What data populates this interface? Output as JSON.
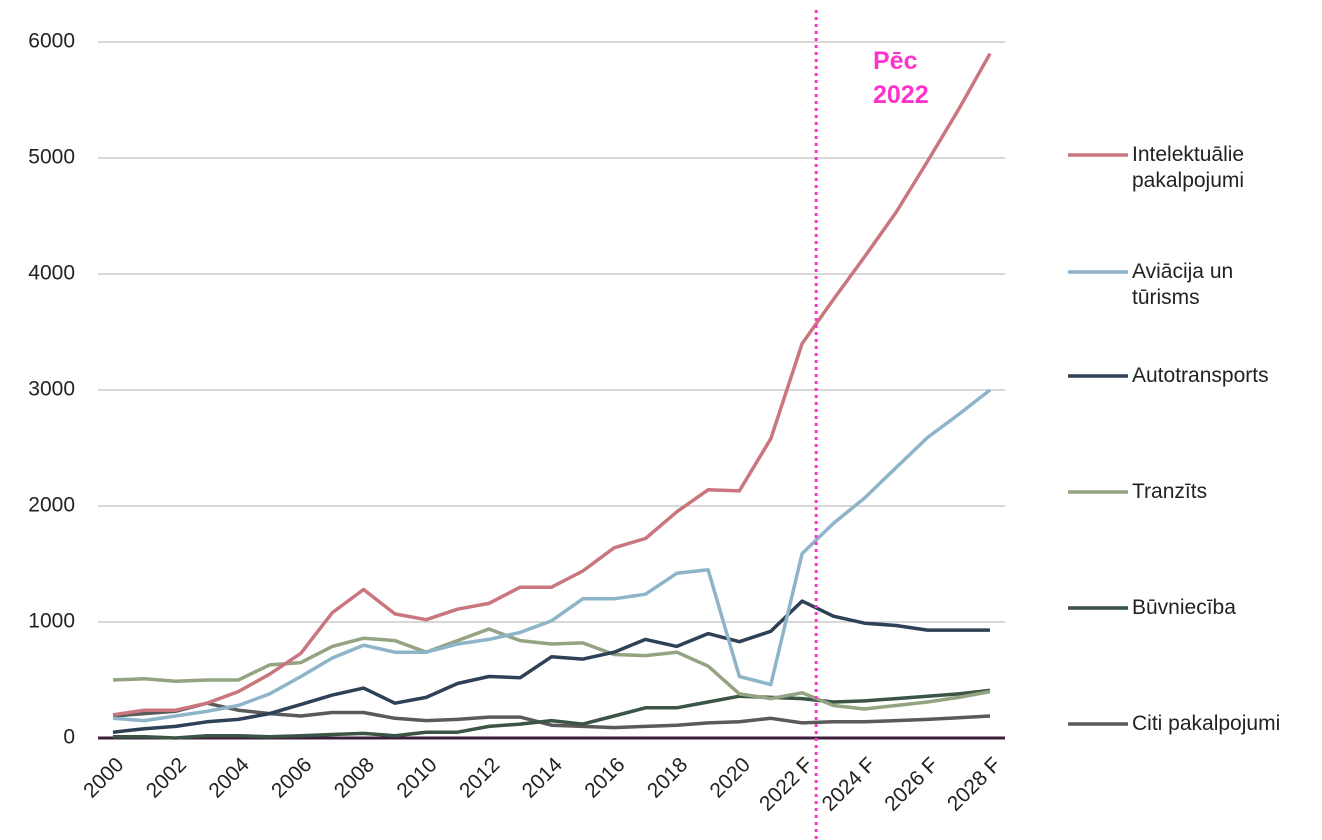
{
  "chart_data": {
    "type": "line",
    "categories": [
      "2000",
      null,
      "2002",
      null,
      "2004",
      null,
      "2006",
      null,
      "2008",
      null,
      "2010",
      null,
      "2012",
      null,
      "2014",
      null,
      "2016",
      null,
      "2018",
      null,
      "2020",
      null,
      "2022 F",
      null,
      "2024 F",
      null,
      "2026 F",
      null,
      "2028 F"
    ],
    "series": [
      {
        "name": "Intelektuālie\npakalpojumi",
        "color": "#c9767f",
        "values": [
          200,
          240,
          240,
          300,
          400,
          550,
          730,
          1080,
          1280,
          1070,
          1020,
          1110,
          1160,
          1300,
          1300,
          1440,
          1640,
          1720,
          1950,
          2140,
          2130,
          2580,
          3400,
          3780,
          4150,
          4530,
          4970,
          5420,
          5900
        ]
      },
      {
        "name": "Aviācija un\ntūrisms",
        "color": "#8db4c8",
        "values": [
          170,
          150,
          190,
          230,
          280,
          380,
          530,
          690,
          800,
          740,
          740,
          810,
          850,
          910,
          1010,
          1200,
          1200,
          1240,
          1420,
          1450,
          530,
          460,
          1590,
          1850,
          2070,
          2330,
          2590,
          2790,
          3000
        ]
      },
      {
        "name": "Autotransports",
        "color": "#2f4156",
        "values": [
          50,
          80,
          100,
          140,
          160,
          210,
          290,
          370,
          430,
          300,
          350,
          470,
          530,
          520,
          700,
          680,
          740,
          850,
          790,
          900,
          830,
          920,
          1180,
          1050,
          990,
          970,
          930,
          930,
          930
        ]
      },
      {
        "name": "Tranzīts",
        "color": "#94a382",
        "values": [
          500,
          510,
          490,
          500,
          500,
          630,
          650,
          790,
          860,
          840,
          740,
          840,
          940,
          840,
          810,
          820,
          720,
          710,
          740,
          620,
          380,
          340,
          390,
          280,
          250,
          280,
          310,
          350,
          400
        ]
      },
      {
        "name": "Būvniecība",
        "color": "#3a5445",
        "values": [
          10,
          10,
          0,
          20,
          20,
          10,
          20,
          30,
          40,
          20,
          50,
          50,
          100,
          120,
          150,
          120,
          190,
          260,
          260,
          310,
          360,
          350,
          340,
          310,
          320,
          340,
          360,
          380,
          410
        ]
      },
      {
        "name": "Citi pakalpojumi",
        "color": "#5a5a5a",
        "values": [
          190,
          210,
          230,
          300,
          240,
          210,
          190,
          220,
          220,
          170,
          150,
          160,
          180,
          180,
          110,
          100,
          90,
          100,
          110,
          130,
          140,
          170,
          130,
          140,
          140,
          150,
          160,
          175,
          190
        ]
      }
    ],
    "annotation": "Pēc\n2022",
    "ylim": [
      0,
      6000
    ],
    "yticks": [
      0,
      1000,
      2000,
      3000,
      4000,
      5000,
      6000
    ],
    "grid": true
  }
}
